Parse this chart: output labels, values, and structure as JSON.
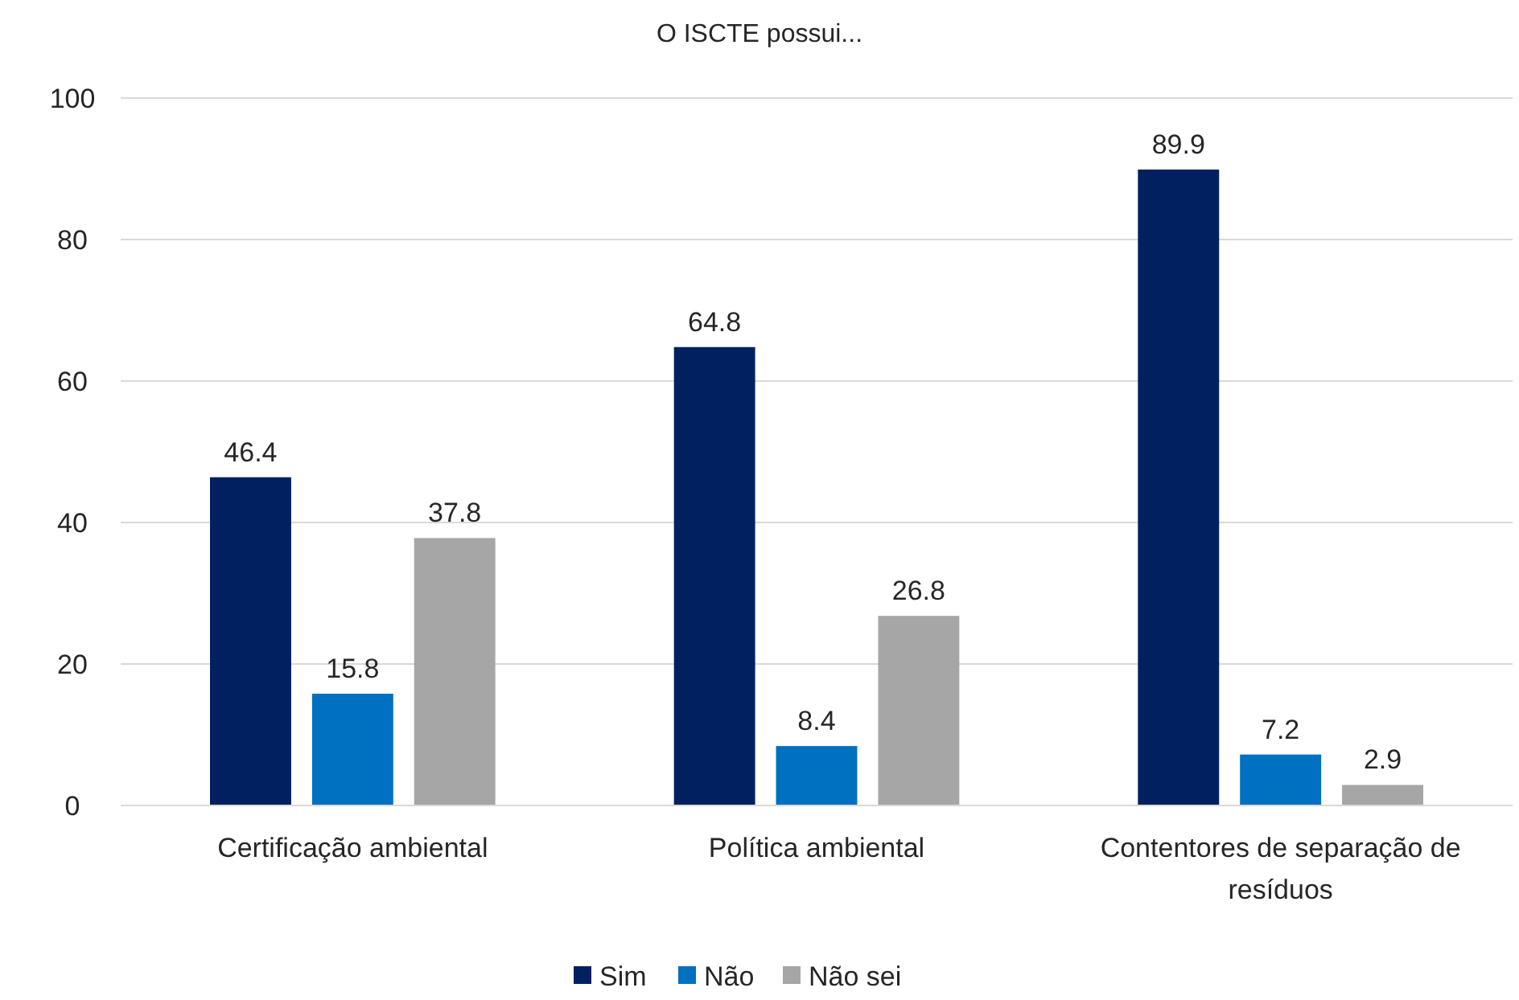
{
  "chart_data": {
    "type": "bar",
    "title": "O ISCTE possui...",
    "categories": [
      "Certificação ambiental",
      "Política ambiental",
      "Contentores de separação de resíduos"
    ],
    "series": [
      {
        "name": "Sim",
        "color": "#002060",
        "values": [
          46.4,
          64.8,
          89.9
        ]
      },
      {
        "name": "Não",
        "color": "#0070c0",
        "values": [
          15.8,
          8.4,
          7.2
        ]
      },
      {
        "name": "Não sei",
        "color": "#a6a6a6",
        "values": [
          37.8,
          26.8,
          2.9
        ]
      }
    ],
    "ylim": [
      0,
      100
    ],
    "yticks": [
      0,
      20,
      40,
      60,
      80,
      100
    ],
    "grid": "y",
    "legend": "bottom",
    "data_labels": true
  }
}
